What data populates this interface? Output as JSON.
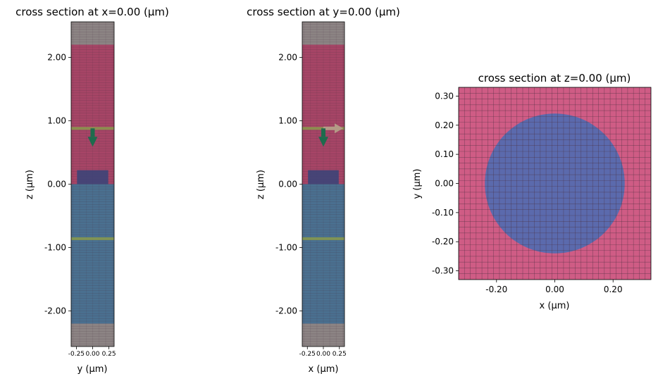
{
  "figure": {
    "colors": {
      "background_medium": "#a64566",
      "substrate": "#4a7090",
      "pml": "#8c8484",
      "structure": "#3d4478",
      "monitor_line": "#8a9a4c",
      "source_arrow": "#1e6b4d",
      "direction_arrow": "#b39a86",
      "circle": "#5b6aad",
      "medium_zview": "#cf5c85",
      "grid_line": "#4a3040"
    }
  },
  "chart_data": [
    {
      "type": "heatmap",
      "title": "cross section at x=0.00 (μm)",
      "xlabel": "y (μm)",
      "ylabel": "z (μm)",
      "xlim": [
        -0.33,
        0.33
      ],
      "ylim": [
        -2.56,
        2.56
      ],
      "xticks": [
        -0.25,
        0.0,
        0.25
      ],
      "xtick_labels": [
        "-0.25",
        "0.00",
        "0.25"
      ],
      "yticks": [
        2.0,
        1.0,
        0.0,
        -1.0,
        -2.0
      ],
      "ytick_labels": [
        "2.00",
        "1.00",
        "0.00",
        "-1.00",
        "-2.00"
      ],
      "regions": [
        {
          "name": "pml-top",
          "z": [
            2.2,
            2.56
          ],
          "color_key": "pml"
        },
        {
          "name": "medium",
          "z": [
            0.0,
            2.2
          ],
          "color_key": "background_medium"
        },
        {
          "name": "substrate",
          "z": [
            -2.2,
            0.0
          ],
          "color_key": "substrate"
        },
        {
          "name": "pml-bottom",
          "z": [
            -2.56,
            -2.2
          ],
          "color_key": "pml"
        }
      ],
      "structure": {
        "y": [
          -0.24,
          0.24
        ],
        "z": [
          0.0,
          0.22
        ]
      },
      "monitors_z": [
        0.88,
        -0.86
      ],
      "source": {
        "z": 0.88,
        "direction": "down"
      },
      "direction_arrow": false
    },
    {
      "type": "heatmap",
      "title": "cross section at y=0.00 (μm)",
      "xlabel": "x (μm)",
      "ylabel": "z (μm)",
      "xlim": [
        -0.33,
        0.33
      ],
      "ylim": [
        -2.56,
        2.56
      ],
      "xticks": [
        -0.25,
        0.0,
        0.25
      ],
      "xtick_labels": [
        "-0.25",
        "0.00",
        "0.25"
      ],
      "yticks": [
        2.0,
        1.0,
        0.0,
        -1.0,
        -2.0
      ],
      "ytick_labels": [
        "2.00",
        "1.00",
        "0.00",
        "-1.00",
        "-2.00"
      ],
      "regions": [
        {
          "name": "pml-top",
          "z": [
            2.2,
            2.56
          ],
          "color_key": "pml"
        },
        {
          "name": "medium",
          "z": [
            0.0,
            2.2
          ],
          "color_key": "background_medium"
        },
        {
          "name": "substrate",
          "z": [
            -2.2,
            0.0
          ],
          "color_key": "substrate"
        },
        {
          "name": "pml-bottom",
          "z": [
            -2.56,
            -2.2
          ],
          "color_key": "pml"
        }
      ],
      "structure": {
        "x": [
          -0.24,
          0.24
        ],
        "z": [
          0.0,
          0.22
        ]
      },
      "monitors_z": [
        0.88,
        -0.86
      ],
      "source": {
        "z": 0.88,
        "direction": "down"
      },
      "direction_arrow": true
    },
    {
      "type": "heatmap",
      "title": "cross section at z=0.00 (μm)",
      "xlabel": "x (μm)",
      "ylabel": "y (μm)",
      "xlim": [
        -0.33,
        0.33
      ],
      "ylim": [
        -0.33,
        0.33
      ],
      "xticks": [
        -0.2,
        0.0,
        0.2
      ],
      "xtick_labels": [
        "-0.20",
        "0.00",
        "0.20"
      ],
      "yticks": [
        0.3,
        0.2,
        0.1,
        0.0,
        -0.1,
        -0.2,
        -0.3
      ],
      "ytick_labels": [
        "0.30",
        "0.20",
        "0.10",
        "0.00",
        "-0.10",
        "-0.20",
        "-0.30"
      ],
      "circle": {
        "cx": 0.0,
        "cy": 0.0,
        "r": 0.24
      },
      "grid_step": 0.02
    }
  ]
}
